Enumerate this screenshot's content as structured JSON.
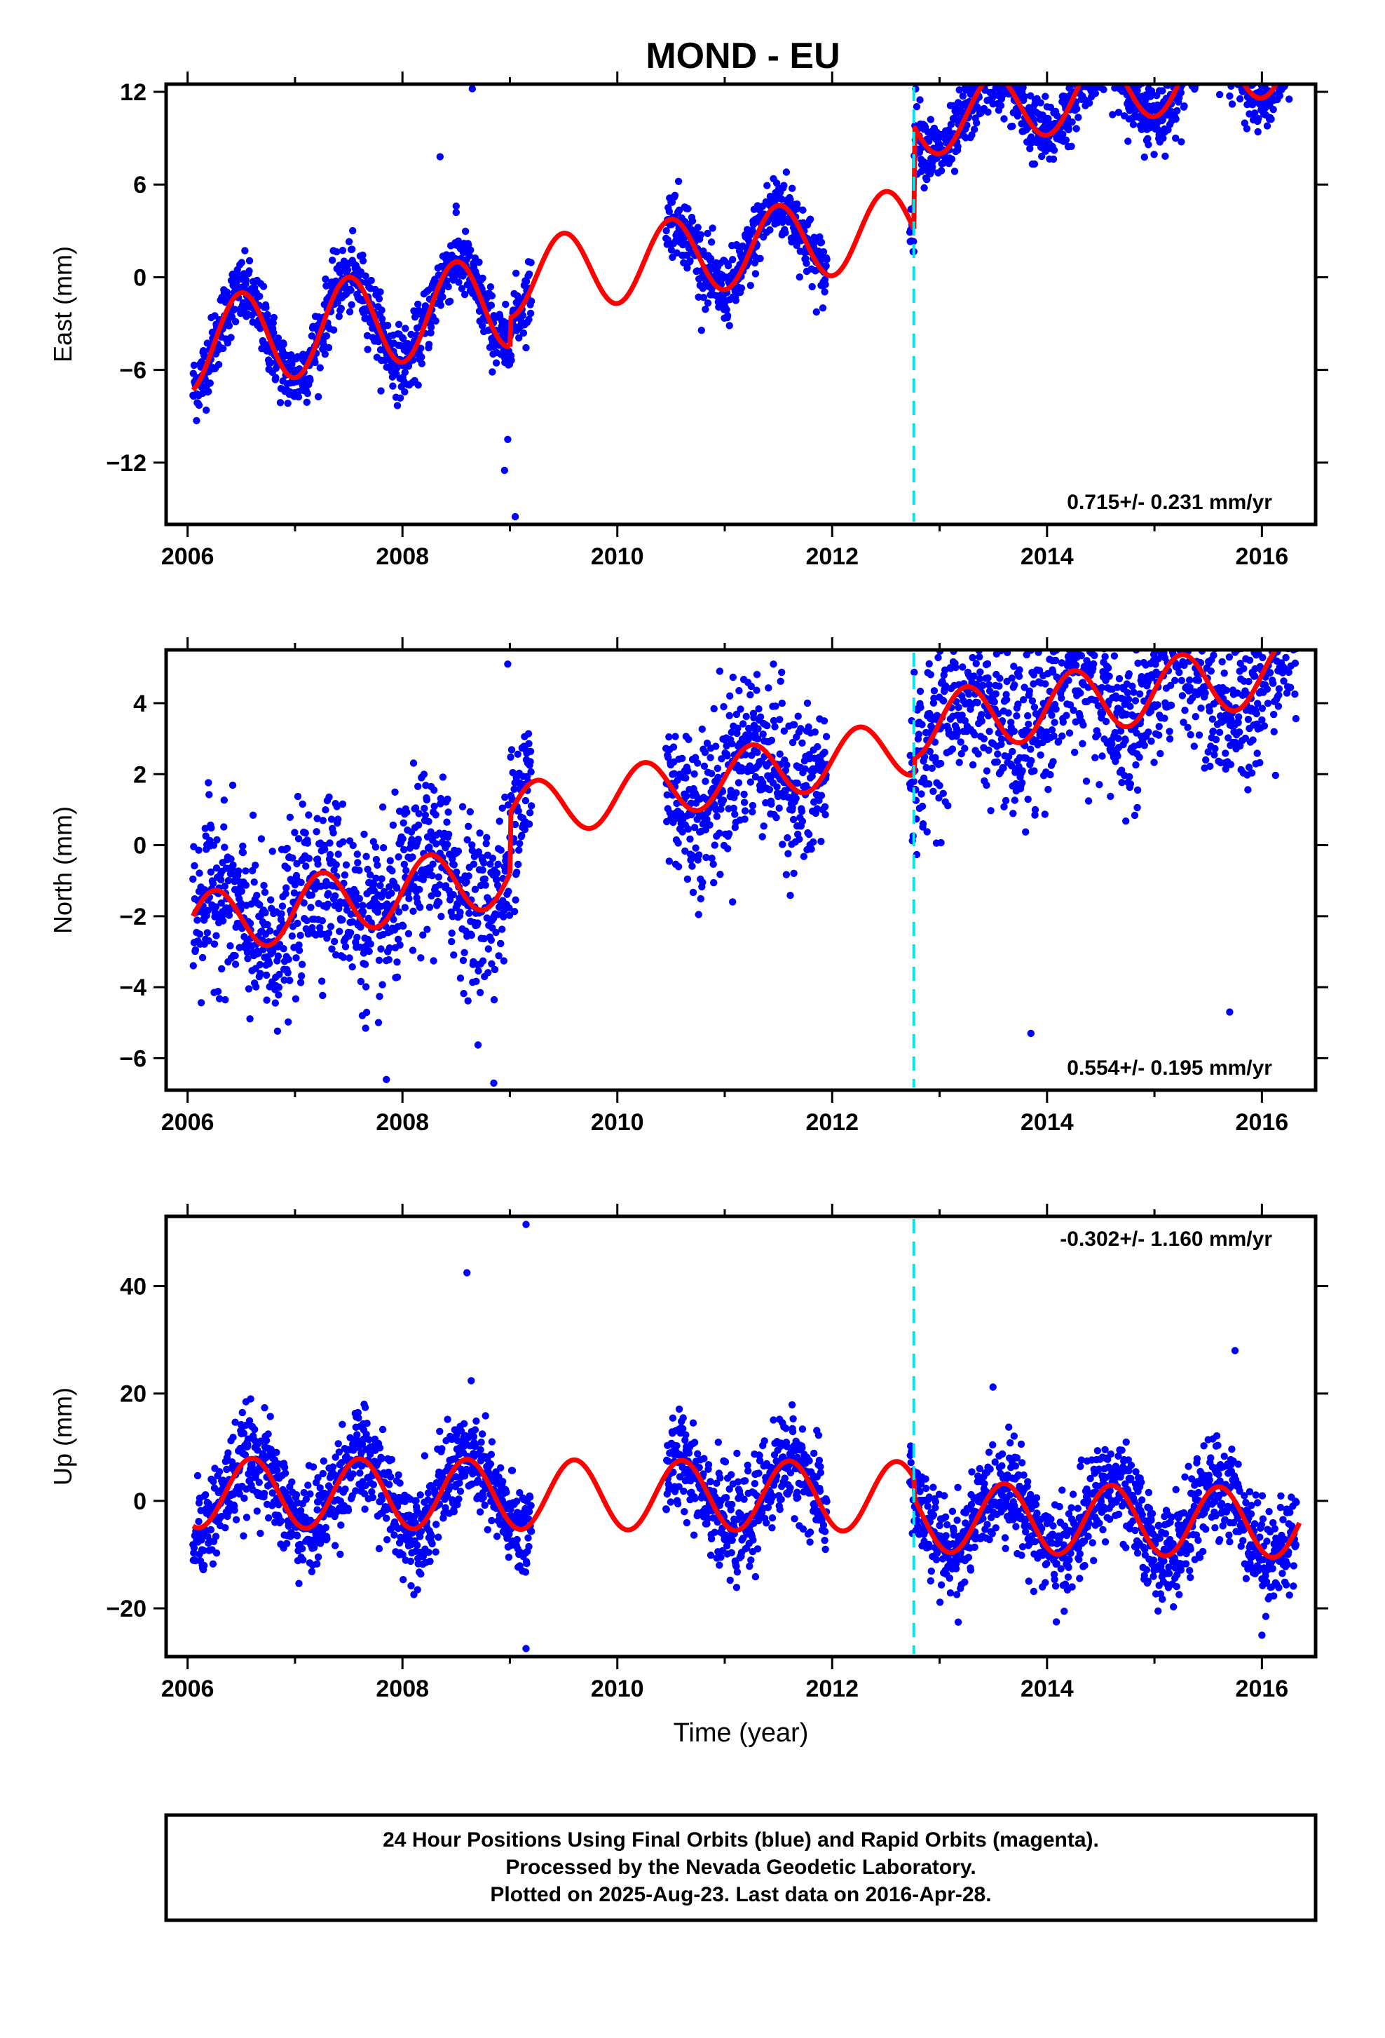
{
  "chart_data": {
    "title": "MOND - EU",
    "type": "scatter",
    "xlabel": "Time (year)",
    "xlim": [
      2005.8,
      2016.5
    ],
    "xticks": [
      2006,
      2008,
      2010,
      2012,
      2014,
      2016
    ],
    "event_line": {
      "x": 2012.76,
      "color": "#00e5ee",
      "style": "dashed"
    },
    "colors": {
      "points": "#0000ff",
      "model": "#ff0000",
      "frame": "#000000"
    },
    "grid": false,
    "legend": "none",
    "data_gaps": [
      [
        2009.2,
        2010.45
      ],
      [
        2011.95,
        2012.72
      ]
    ],
    "panels": [
      {
        "id": "east",
        "ylabel": "East (mm)",
        "ylim": [
          -16,
          12.5
        ],
        "yticks": [
          12,
          6,
          0,
          -6,
          -12
        ],
        "ytick_labels": [
          "12",
          "6",
          "0",
          "−6",
          "−12"
        ],
        "rate_label": "0.715+/- 0.231 mm/yr",
        "rate_position": "bottom-right",
        "model": {
          "segments": [
            {
              "range": [
                2006.05,
                2009.0
              ],
              "offset": -4.5,
              "slope": 1.0,
              "amp": 3.0,
              "phase": 0.25
            },
            {
              "range": [
                2009.0,
                2012.76
              ],
              "offset": -2.8,
              "slope": 0.9,
              "amp": 2.5,
              "phase": 0.25
            },
            {
              "range": [
                2012.76,
                2016.35
              ],
              "offset": 1.8,
              "slope": 1.2,
              "amp": 2.2,
              "phase": 0.25
            }
          ]
        },
        "scatter": {
          "noise": 1.1,
          "outliers": [
            [
              2008.65,
              12.2
            ],
            [
              2008.35,
              7.8
            ],
            [
              2008.95,
              -12.5
            ],
            [
              2009.05,
              -15.5
            ],
            [
              2008.98,
              -10.5
            ],
            [
              2008.5,
              4.2
            ]
          ]
        }
      },
      {
        "id": "north",
        "ylabel": "North (mm)",
        "ylim": [
          -6.9,
          5.5
        ],
        "yticks": [
          4,
          2,
          0,
          -2,
          -4,
          -6
        ],
        "ytick_labels": [
          "4",
          "2",
          "0",
          "−2",
          "−4",
          "−6"
        ],
        "rate_label": "0.554+/- 0.195 mm/yr",
        "rate_position": "bottom-right",
        "model": {
          "segments": [
            {
              "range": [
                2006.05,
                2009.0
              ],
              "offset": -2.3,
              "slope": 0.5,
              "amp": 0.9,
              "phase": 0.0
            },
            {
              "range": [
                2009.0,
                2012.76
              ],
              "offset": -0.6,
              "slope": 0.5,
              "amp": 0.8,
              "phase": 0.0
            },
            {
              "range": [
                2012.76,
                2016.35
              ],
              "offset": 0.3,
              "slope": 0.45,
              "amp": 0.9,
              "phase": 0.0
            }
          ]
        },
        "scatter": {
          "noise": 1.15,
          "outliers": [
            [
              2008.98,
              5.1
            ],
            [
              2014.05,
              5.2
            ],
            [
              2013.1,
              5.0
            ],
            [
              2015.7,
              -4.7
            ],
            [
              2013.85,
              -5.3
            ],
            [
              2008.85,
              -6.7
            ],
            [
              2007.85,
              -6.6
            ]
          ]
        }
      },
      {
        "id": "up",
        "ylabel": "Up (mm)",
        "ylim": [
          -29,
          53
        ],
        "yticks": [
          40,
          20,
          0,
          -20
        ],
        "ytick_labels": [
          "40",
          "20",
          "0",
          "−20"
        ],
        "rate_label": "-0.302+/- 1.160 mm/yr",
        "rate_position": "top-right",
        "model": {
          "segments": [
            {
              "range": [
                2006.05,
                2012.76
              ],
              "offset": 1.5,
              "slope": -0.1,
              "amp": 6.5,
              "phase": 0.35
            },
            {
              "range": [
                2012.76,
                2016.35
              ],
              "offset": -1.0,
              "slope": -0.3,
              "amp": 6.5,
              "phase": 0.35
            }
          ]
        },
        "scatter": {
          "noise": 4.5,
          "outliers": [
            [
              2009.15,
              51.5
            ],
            [
              2009.15,
              -27.5
            ],
            [
              2008.6,
              42.5
            ],
            [
              2015.75,
              28.0
            ],
            [
              2016.0,
              -25.0
            ]
          ]
        }
      }
    ],
    "footer_lines": [
      "24 Hour Positions Using Final Orbits (blue) and Rapid Orbits (magenta).",
      "Processed by the Nevada Geodetic Laboratory.",
      "Plotted on 2025-Aug-23. Last data on 2016-Apr-28."
    ]
  }
}
